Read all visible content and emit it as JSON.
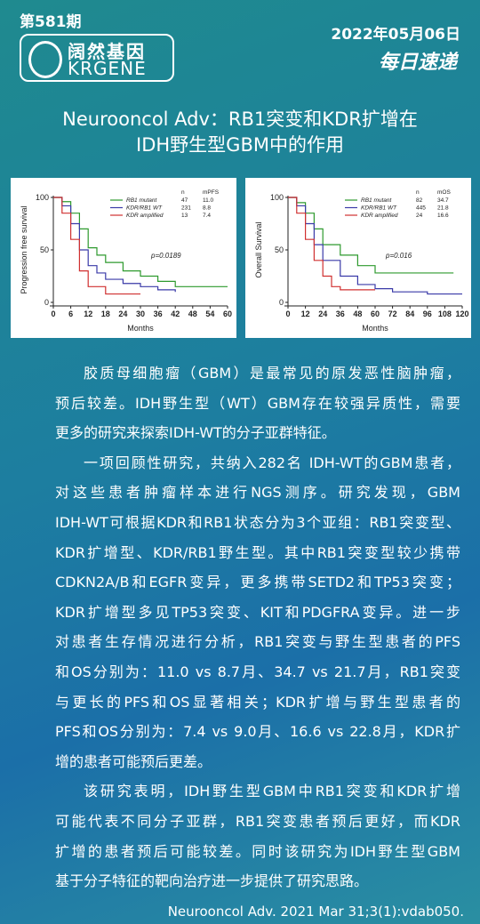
{
  "header": {
    "issue": "第581期",
    "logo_cn": "阔然基因",
    "logo_en": "KRGENE",
    "date": "2022年05月06日",
    "column": "每日速递"
  },
  "title": [
    "Neurooncol Adv：RB1突变和KDR扩增在",
    "IDH野生型GBM中的作用"
  ],
  "chart_data": [
    {
      "type": "line",
      "x_label": "Months",
      "y_label": "Progression free survival",
      "xlim": [
        0,
        60
      ],
      "xticks": [
        0,
        6,
        12,
        18,
        24,
        30,
        36,
        42,
        48,
        54,
        60
      ],
      "ylim": [
        0,
        100
      ],
      "yticks": [
        0,
        50,
        100
      ],
      "legend_header": [
        "n",
        "mPFS"
      ],
      "annotation": "p=0.0189",
      "series": [
        {
          "name": "RB1 mutant",
          "n": "47",
          "median": "11.0",
          "color": "#2e9a2e",
          "x": [
            0,
            3,
            6,
            9,
            12,
            15,
            18,
            24,
            30,
            36,
            42,
            48,
            60
          ],
          "values": [
            100,
            96,
            85,
            70,
            52,
            45,
            38,
            30,
            25,
            20,
            15,
            15,
            15
          ]
        },
        {
          "name": "KDR/RB1 WT",
          "n": "231",
          "median": "8.8",
          "color": "#3a3aa8",
          "x": [
            0,
            3,
            6,
            9,
            12,
            15,
            18,
            24,
            30,
            36,
            42
          ],
          "values": [
            100,
            92,
            75,
            50,
            35,
            28,
            22,
            18,
            15,
            12,
            10
          ]
        },
        {
          "name": "KDR amplified",
          "n": "13",
          "median": "7.4",
          "color": "#d03030",
          "x": [
            0,
            3,
            6,
            9,
            12,
            18,
            24,
            30
          ],
          "values": [
            100,
            85,
            60,
            30,
            15,
            8,
            8,
            8
          ]
        }
      ]
    },
    {
      "type": "line",
      "x_label": "Months",
      "y_label": "Overall Survival",
      "xlim": [
        0,
        120
      ],
      "xticks": [
        0,
        12,
        24,
        36,
        48,
        60,
        72,
        84,
        96,
        108,
        120
      ],
      "ylim": [
        0,
        100
      ],
      "yticks": [
        0,
        50,
        100
      ],
      "legend_header": [
        "n",
        "mOS"
      ],
      "annotation": "p=0.016",
      "series": [
        {
          "name": "RB1 mutant",
          "n": "82",
          "median": "34.7",
          "color": "#2e9a2e",
          "x": [
            0,
            6,
            12,
            18,
            24,
            36,
            48,
            60,
            72,
            84,
            96,
            114
          ],
          "values": [
            100,
            95,
            85,
            70,
            55,
            45,
            35,
            28,
            28,
            28,
            28,
            28
          ]
        },
        {
          "name": "KDR/RB1 WT",
          "n": "445",
          "median": "21.8",
          "color": "#3a3aa8",
          "x": [
            0,
            6,
            12,
            18,
            24,
            36,
            48,
            60,
            72,
            96,
            120
          ],
          "values": [
            100,
            92,
            75,
            55,
            40,
            25,
            17,
            13,
            10,
            8,
            8
          ]
        },
        {
          "name": "KDR amplified",
          "n": "24",
          "median": "16.6",
          "color": "#d03030",
          "x": [
            0,
            6,
            12,
            18,
            24,
            30,
            36,
            48,
            60
          ],
          "values": [
            100,
            85,
            60,
            40,
            25,
            15,
            12,
            12,
            12
          ]
        }
      ]
    }
  ],
  "body": [
    [
      "胶质母细胞瘤（GBM）是最常见的原发恶性脑肿瘤，",
      "预后较差。IDH野生型（WT）GBM存在较强异质性，需要",
      "更多的研究来探索IDH-WT的分子亚群特征。"
    ],
    [
      "一项回顾性研究，共纳入282名 IDH-WT的GBM患者，",
      "对这些患者肿瘤样本进行NGS测序。研究发现，GBM",
      "IDH-WT可根据KDR和RB1状态分为3个亚组：RB1突变型、",
      "KDR扩增型、KDR/RB1野生型。其中RB1突变型较少携带",
      "CDKN2A/B和EGFR变异，更多携带SETD2和TP53突变；",
      "KDR扩增型多见TP53突变、KIT和PDGFRA变异。进一步",
      "对患者生存情况进行分析，RB1突变与野生型患者的PFS",
      "和OS分别为：11.0 vs 8.7月、34.7 vs 21.7月，RB1突变",
      "与更长的PFS和OS显著相关；KDR扩增与野生型患者的",
      "PFS和OS分别为：7.4 vs 9.0月、16.6 vs 22.8月，KDR扩",
      "增的患者可能预后更差。"
    ],
    [
      "该研究表明，IDH野生型GBM中RB1突变和KDR扩增",
      "可能代表不同分子亚群，RB1突变患者预后更好，而KDR",
      "扩增的患者预后可能较差。同时该研究为IDH野生型GBM",
      "基于分子特征的靶向治疗进一步提供了研究思路。"
    ]
  ],
  "citation": "Neurooncol Adv. 2021 Mar 31;3(1):vdab050."
}
